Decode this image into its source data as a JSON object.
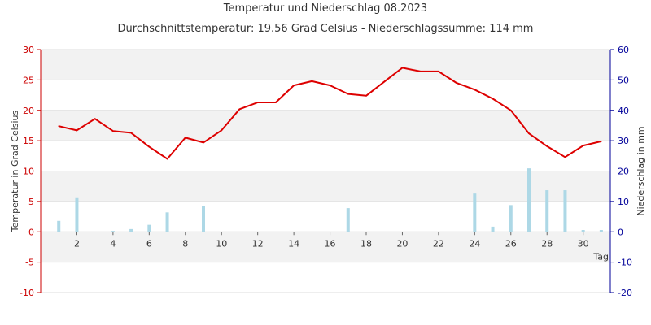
{
  "chart_data": {
    "type": "line",
    "title": "Temperatur und Niederschlag 08.2023",
    "subtitle": "Durchschnittstemperatur: 19.56 Grad Celsius   -   Niederschlagssumme: 114 mm",
    "xlabel": "Tag",
    "ylabel_left": "Temperatur in Grad Celsius",
    "ylabel_right": "Niederschlag in mm",
    "ylim_left": [
      -10,
      30
    ],
    "ylim_right": [
      -20,
      60
    ],
    "xlim": [
      0,
      31.5
    ],
    "left_ticks": [
      "-10",
      "-5",
      "0",
      "5",
      "10",
      "15",
      "20",
      "25",
      "30"
    ],
    "right_ticks": [
      "-20",
      "-10",
      "0",
      "10",
      "20",
      "30",
      "40",
      "50",
      "60"
    ],
    "x_ticks": [
      "2",
      "4",
      "6",
      "8",
      "10",
      "12",
      "14",
      "16",
      "18",
      "20",
      "22",
      "24",
      "26",
      "28",
      "30"
    ],
    "grid": "horizontal bands",
    "series": [
      {
        "name": "Temperatur",
        "kind": "line",
        "axis": "left",
        "color": "#dd0000",
        "x": [
          1,
          2,
          3,
          4,
          5,
          6,
          7,
          8,
          9,
          10,
          11,
          12,
          13,
          14,
          15,
          16,
          17,
          18,
          19,
          20,
          21,
          22,
          23,
          24,
          25,
          26,
          27,
          28,
          29,
          30,
          31
        ],
        "values": [
          17.4,
          16.7,
          18.6,
          16.6,
          16.3,
          14.0,
          12.0,
          15.5,
          14.7,
          16.7,
          20.2,
          21.3,
          21.3,
          24.1,
          24.8,
          24.1,
          22.7,
          22.4,
          24.7,
          27.0,
          26.4,
          26.4,
          24.5,
          23.4,
          21.9,
          20.0,
          16.2,
          14.1,
          12.3,
          14.2,
          14.9
        ]
      },
      {
        "name": "Niederschlag",
        "kind": "bar",
        "axis": "right",
        "color": "#add8e6",
        "x": [
          1,
          2,
          3,
          4,
          5,
          6,
          7,
          8,
          9,
          10,
          11,
          12,
          13,
          14,
          15,
          16,
          17,
          18,
          19,
          20,
          21,
          22,
          23,
          24,
          25,
          26,
          27,
          28,
          29,
          30,
          31
        ],
        "values": [
          3.6,
          11.1,
          0,
          0.3,
          0.9,
          2.3,
          6.4,
          0,
          8.6,
          0,
          0,
          0,
          0,
          0,
          0,
          0,
          7.8,
          0,
          0,
          0,
          0,
          0,
          0,
          12.6,
          1.7,
          8.8,
          20.9,
          13.7,
          13.7,
          0.6,
          0.6
        ]
      }
    ]
  }
}
